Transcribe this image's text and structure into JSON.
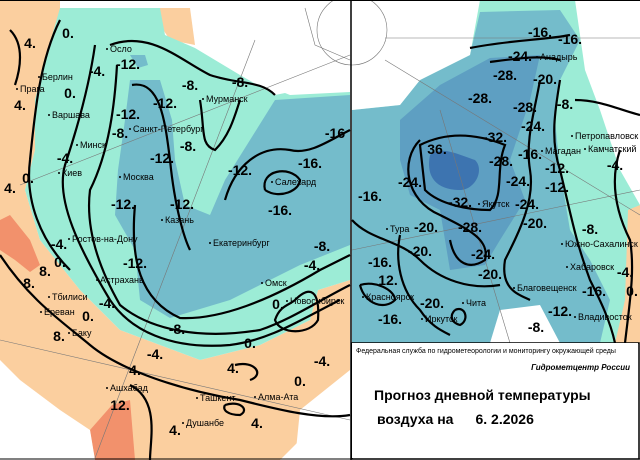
{
  "colors": {
    "warm": "#fbcf9f",
    "hot": "#f2916c",
    "cool": "#9cecd6",
    "cold": "#74bccb",
    "colder": "#5e9fc2",
    "coldest": "#3d74b0"
  },
  "left_map": {
    "cities": [
      "Осло",
      "Берлин",
      "Прага",
      "Варшава",
      "Минск",
      "Санкт-Петербург",
      "Мурманск",
      "Киев",
      "Москва",
      "Салехард",
      "Казань",
      "Ростов-на-Дону",
      "Екатеринбург",
      "Астрахань",
      "Омск",
      "Тбилиси",
      "Новосибирск",
      "Ереван",
      "Баку",
      "Ашхабад",
      "Ташкент",
      "Алма-Ата",
      "Душанбе"
    ],
    "contour_labels": [
      "4.",
      "0.",
      "-4.",
      "-12.",
      "0.",
      "4.",
      "-8.",
      "-8.",
      "-12.",
      "-12.",
      "-8.",
      "-8.",
      "-16",
      "-4.",
      "-12.",
      "-12.",
      "-16.",
      "-16.",
      "0.",
      "4.",
      "-12.",
      "-12.",
      "-4.",
      "0.",
      "8.",
      "8.",
      "-12.",
      "-8.",
      "-4.",
      "-4.",
      "0.",
      "0.",
      "8.",
      "-8.",
      "0.",
      "-4.",
      "-4.",
      "4.",
      "4.",
      "0.",
      "12.",
      "4.",
      "4."
    ]
  },
  "right_map": {
    "cities": [
      "Анадырь",
      "Петропавловск",
      "Камчатский",
      "Магадан",
      "Якутск",
      "Тура",
      "Южно-Сахалинск",
      "Хабаровск",
      "Благовещенск",
      "Красноярск",
      "Чита",
      "Иркутск",
      "Владивосток"
    ],
    "contour_labels": [
      "-16.",
      "-16.",
      "-24.",
      "-28.",
      "-20.",
      "-28.",
      "-28.",
      "-8.",
      "-24.",
      "-32.",
      "-16.",
      "36.",
      "-28.",
      "-12.",
      "-4.",
      "-12.",
      "-24.",
      "-24.",
      "-16.",
      "-32.",
      "-24.",
      "-20.",
      "-20.",
      "-28.",
      "-8.",
      "-20.",
      "-24.",
      "-16.",
      "-20.",
      "-4.",
      "-16.",
      "0.",
      "12.",
      "-20.",
      "-16.",
      "-12.",
      "-8."
    ]
  },
  "info": {
    "agency": "Федеральная служба по гидрометеорологии и мониторингу окружающей среды",
    "center": "Гидрометцентр России",
    "title_line1": "Прогноз дневной температуры",
    "title_line2": "воздуха на",
    "date": "6. 2.2026"
  }
}
